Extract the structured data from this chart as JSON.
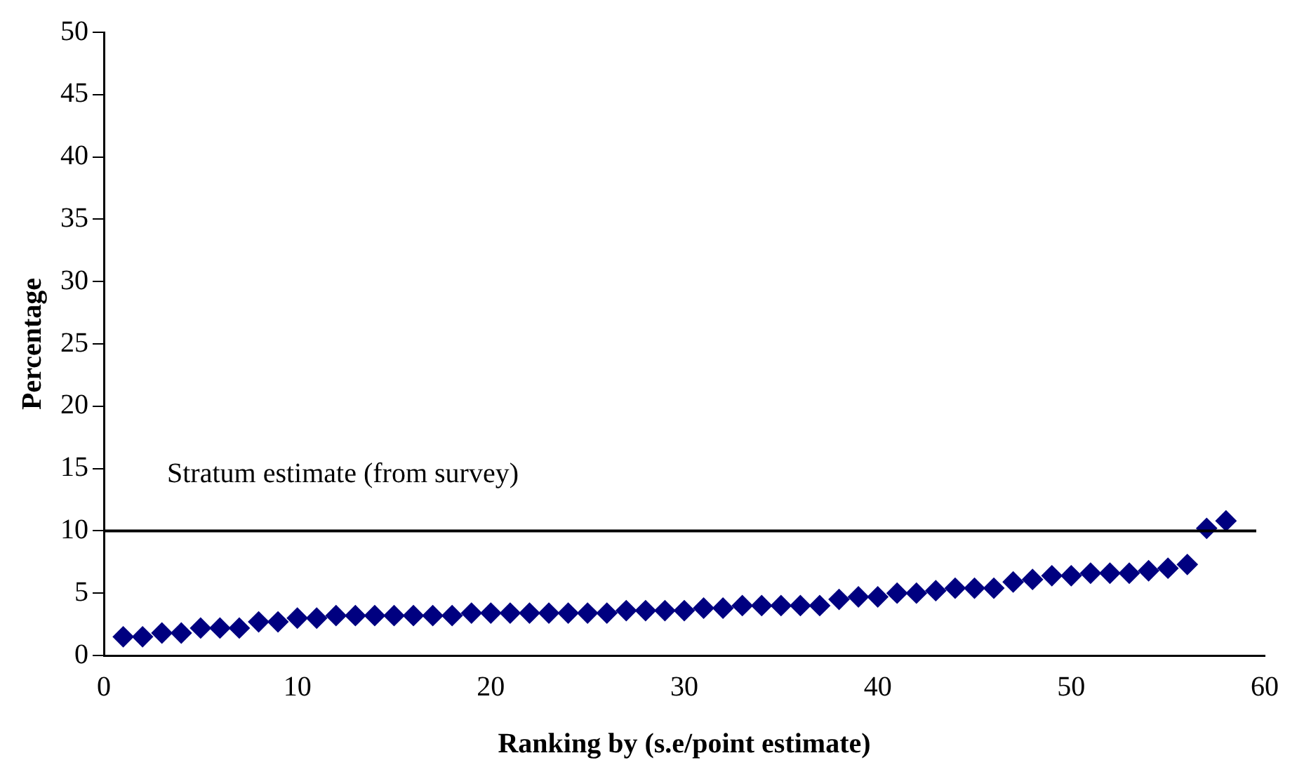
{
  "chart_data": {
    "type": "scatter",
    "xlabel": "Ranking by (s.e/point estimate)",
    "ylabel": "Percentage",
    "x": [
      1,
      2,
      3,
      4,
      5,
      6,
      7,
      8,
      9,
      10,
      11,
      12,
      13,
      14,
      15,
      16,
      17,
      18,
      19,
      20,
      21,
      22,
      23,
      24,
      25,
      26,
      27,
      28,
      29,
      30,
      31,
      32,
      33,
      34,
      35,
      36,
      37,
      38,
      39,
      40,
      41,
      42,
      43,
      44,
      45,
      46,
      47,
      48,
      49,
      50,
      51,
      52,
      53,
      54,
      55,
      56,
      57,
      58
    ],
    "series": [
      {
        "color": "#000080",
        "values": [
          1.5,
          1.5,
          1.8,
          1.8,
          2.2,
          2.2,
          2.2,
          2.7,
          2.7,
          3.0,
          3.0,
          3.2,
          3.2,
          3.2,
          3.2,
          3.2,
          3.2,
          3.2,
          3.4,
          3.4,
          3.4,
          3.4,
          3.4,
          3.4,
          3.4,
          3.4,
          3.6,
          3.6,
          3.6,
          3.6,
          3.8,
          3.8,
          4.0,
          4.0,
          4.0,
          4.0,
          4.0,
          4.5,
          4.7,
          4.7,
          5.0,
          5.0,
          5.2,
          5.4,
          5.4,
          5.4,
          5.9,
          6.1,
          6.4,
          6.4,
          6.6,
          6.6,
          6.6,
          6.8,
          7.0,
          7.3,
          10.2,
          10.8
        ]
      }
    ],
    "marker": "diamond",
    "xlim": [
      0,
      60
    ],
    "xticks": [
      0,
      10,
      20,
      30,
      40,
      50,
      60
    ],
    "ylim": [
      0,
      50
    ],
    "yticks": [
      0,
      5,
      10,
      15,
      20,
      25,
      30,
      35,
      40,
      45,
      50
    ],
    "ref_lines": [
      {
        "axis": "y",
        "value": 10,
        "label": "Stratum estimate (from survey)",
        "color": "#000000"
      }
    ],
    "grid": false,
    "legend": false
  }
}
